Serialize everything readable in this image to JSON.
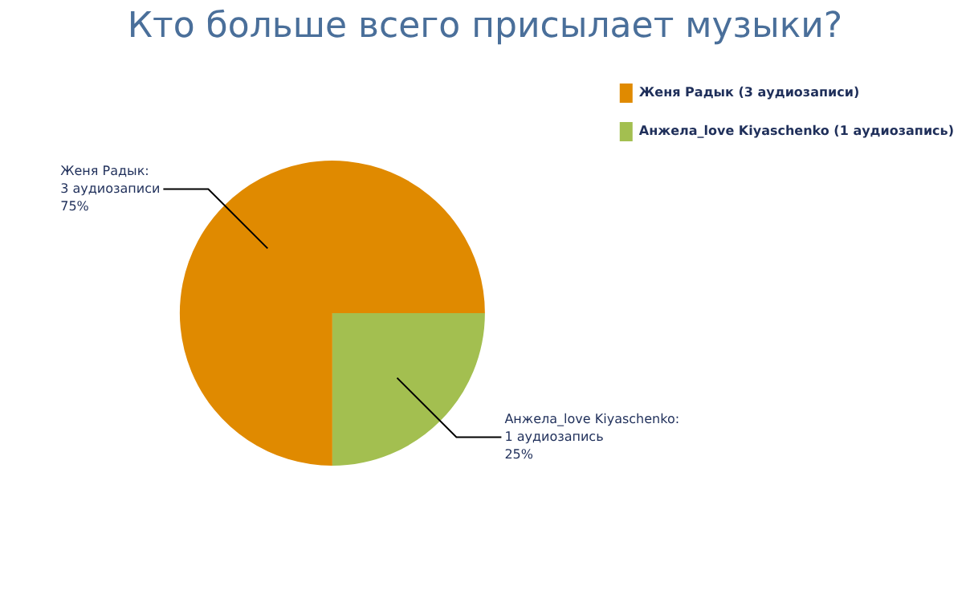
{
  "chart_data": {
    "type": "pie",
    "title": "Кто больше всего присылает музыки?",
    "categories": [
      "Женя Радык (3 аудиозаписи)",
      "Анжела_love Kiyaschenko (1 аудиозапись)"
    ],
    "values": [
      3,
      1
    ],
    "colors": [
      "#e08a00",
      "#a3bf50"
    ],
    "annotations": [
      "Женя Радык:\n3 аудиозаписи\n75%",
      "Анжела_love Kiyaschenko:\n1 аудиозапись\n25%"
    ],
    "legend": "top right"
  }
}
